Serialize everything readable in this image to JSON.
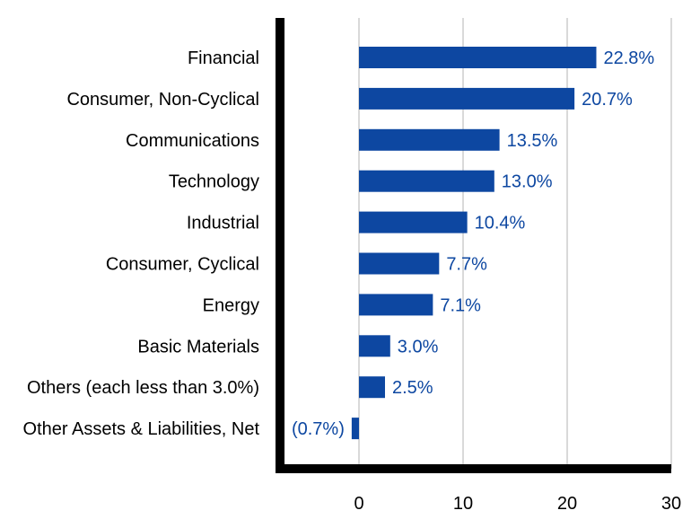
{
  "chart_data": {
    "type": "bar",
    "orientation": "horizontal",
    "categories": [
      "Financial",
      "Consumer, Non-Cyclical",
      "Communications",
      "Technology",
      "Industrial",
      "Consumer, Cyclical",
      "Energy",
      "Basic Materials",
      "Others (each less than 3.0%)",
      "Other Assets & Liabilities, Net"
    ],
    "values": [
      22.8,
      20.7,
      13.5,
      13.0,
      10.4,
      7.7,
      7.1,
      3.0,
      2.5,
      -0.7
    ],
    "value_labels": [
      "22.8%",
      "20.7%",
      "13.5%",
      "13.0%",
      "10.4%",
      "7.7%",
      "7.1%",
      "3.0%",
      "2.5%",
      "(0.7%)"
    ],
    "x_ticks": [
      "0",
      "10",
      "20",
      "30"
    ],
    "x_tick_values": [
      0,
      10,
      20,
      30
    ],
    "xlim": [
      -8,
      30
    ],
    "grid": true,
    "bar_color": "#0d47a1",
    "label_color": "#0d47a1",
    "axis_color": "#000000",
    "grid_color": "#d9d9d9"
  }
}
